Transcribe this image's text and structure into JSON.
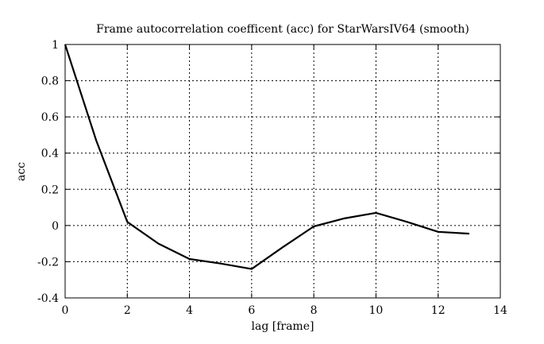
{
  "chart_data": {
    "type": "line",
    "title": "Frame autocorrelation coefficent (acc) for StarWarsIV64 (smooth)",
    "xlabel": "lag [frame]",
    "ylabel": "acc",
    "xlim": [
      0,
      14
    ],
    "ylim": [
      -0.4,
      1
    ],
    "xticks": [
      "0",
      "2",
      "4",
      "6",
      "8",
      "10",
      "12",
      "14"
    ],
    "yticks": [
      "1",
      "0.8",
      "0.6",
      "0.4",
      "0.2",
      "0",
      "-0.2",
      "-0.4"
    ],
    "grid": true,
    "series": [
      {
        "x": [
          0,
          1,
          2,
          3,
          4,
          5,
          6,
          7,
          8,
          9,
          10,
          11,
          12,
          13
        ],
        "y": [
          1.0,
          0.47,
          0.02,
          -0.1,
          -0.185,
          -0.21,
          -0.24,
          -0.12,
          -0.005,
          0.04,
          0.07,
          0.02,
          -0.035,
          -0.045
        ],
        "color": "#000000"
      }
    ]
  }
}
